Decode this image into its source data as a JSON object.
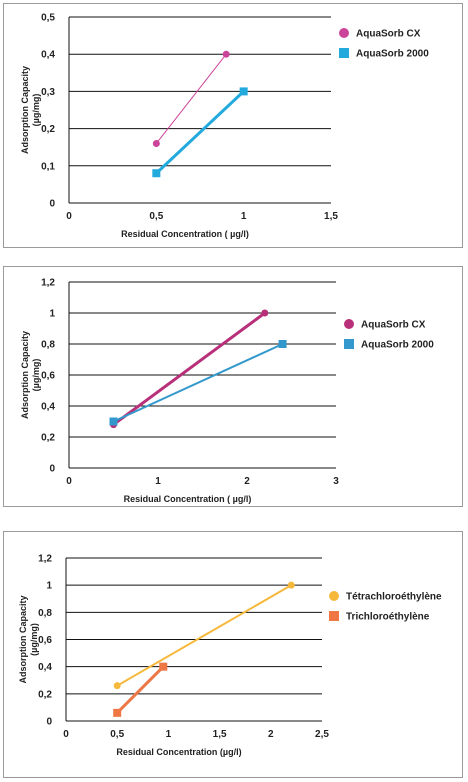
{
  "chart_data": [
    {
      "type": "line",
      "xlabel": "Residual Concentration ( µg/l)",
      "ylabel_lines": [
        "Adsorption Capacity",
        "(µg/mg)"
      ],
      "xlim": [
        0,
        1.5
      ],
      "ylim": [
        0,
        0.5
      ],
      "xticks": [
        0,
        0.5,
        1,
        1.5
      ],
      "xtick_labels": [
        "0",
        "0,5",
        "1",
        "1,5"
      ],
      "yticks": [
        0,
        0.1,
        0.2,
        0.3,
        0.4,
        0.5
      ],
      "ytick_labels": [
        "0",
        "0,1",
        "0,2",
        "0,3",
        "0,4",
        "0,5"
      ],
      "grid": "horizontal",
      "legend_position": "right",
      "series": [
        {
          "name": "AquaSorb CX",
          "color": "#cc4499",
          "marker": "circle",
          "width": 1,
          "x": [
            0.5,
            0.9
          ],
          "y": [
            0.16,
            0.4
          ]
        },
        {
          "name": "AquaSorb 2000",
          "color": "#22aadd",
          "marker": "square",
          "width": 3,
          "x": [
            0.5,
            1.0
          ],
          "y": [
            0.08,
            0.3
          ]
        }
      ]
    },
    {
      "type": "line",
      "xlabel": "Residual Concentration ( µg/l)",
      "ylabel_lines": [
        "Adsorption Capacity",
        "(µg/mg)"
      ],
      "xlim": [
        0,
        3
      ],
      "ylim": [
        0,
        1.2
      ],
      "xticks": [
        0,
        1,
        2,
        3
      ],
      "xtick_labels": [
        "0",
        "1",
        "2",
        "3"
      ],
      "yticks": [
        0,
        0.2,
        0.4,
        0.6,
        0.8,
        1,
        1.2
      ],
      "ytick_labels": [
        "0",
        "0,2",
        "0,4",
        "0,6",
        "0,8",
        "1",
        "1,2"
      ],
      "grid": "horizontal",
      "legend_position": "right",
      "series": [
        {
          "name": "AquaSorb CX",
          "color": "#b8307a",
          "marker": "circle",
          "width": 3,
          "x": [
            0.5,
            2.2
          ],
          "y": [
            0.28,
            1.0
          ]
        },
        {
          "name": "AquaSorb 2000",
          "color": "#3399cc",
          "marker": "square",
          "width": 2,
          "x": [
            0.5,
            2.4
          ],
          "y": [
            0.3,
            0.8
          ]
        }
      ]
    },
    {
      "type": "line",
      "xlabel": "Residual Concentration (µg/l)",
      "ylabel_lines": [
        "Adsorption Capacity",
        "(µg/mg)"
      ],
      "xlim": [
        0,
        2.5
      ],
      "ylim": [
        0,
        1.2
      ],
      "xticks": [
        0,
        0.5,
        1,
        1.5,
        2,
        2.5
      ],
      "xtick_labels": [
        "0",
        "0,5",
        "1",
        "1,5",
        "2",
        "2,5"
      ],
      "yticks": [
        0,
        0.2,
        0.4,
        0.6,
        0.8,
        1,
        1.2
      ],
      "ytick_labels": [
        "0",
        "0,2",
        "0,4",
        "0,6",
        "0,8",
        "1",
        "1,2"
      ],
      "grid": "horizontal",
      "legend_position": "right",
      "series": [
        {
          "name": "Tétrachloroéthylène",
          "color": "#f5b83a",
          "marker": "circle",
          "width": 2,
          "x": [
            0.5,
            2.2
          ],
          "y": [
            0.26,
            1.0
          ]
        },
        {
          "name": "Trichloroéthylène",
          "color": "#ee7744",
          "marker": "square",
          "width": 3,
          "x": [
            0.5,
            0.95
          ],
          "y": [
            0.06,
            0.4
          ]
        }
      ]
    }
  ]
}
